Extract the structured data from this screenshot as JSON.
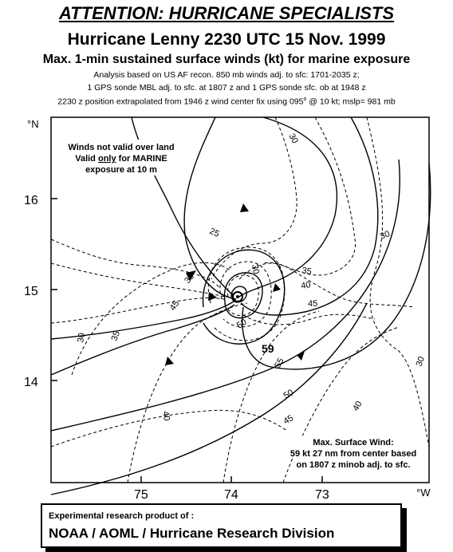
{
  "header": {
    "attention": "ATTENTION: HURRICANE SPECIALISTS",
    "title": "Hurricane Lenny 2230 UTC 15 Nov. 1999",
    "subtitle": "Max. 1-min sustained surface winds (kt) for marine exposure",
    "analysis_line1": "Analysis based on US AF recon. 850 mb winds adj. to sfc: 1701-2035 z;",
    "analysis_line2": "1 GPS sonde MBL adj. to sfc. at 1807 z and 1 GPS sonde sfc. ob at 1948 z",
    "analysis_line3_pre": "2230 z position extrapolated from 1946 z wind center fix using  095",
    "analysis_line3_deg": "o",
    "analysis_line3_post": " @ 10 kt; mslp= 981 mb"
  },
  "map": {
    "lat_unit": "°N",
    "lon_unit": "°W",
    "lat_ticks": [
      "16",
      "15",
      "14"
    ],
    "lon_ticks": [
      "75",
      "74",
      "73"
    ],
    "note_land_1": "Winds not valid over land",
    "note_land_2_pre": "Valid ",
    "note_land_2_em": "only",
    "note_land_2_post": " for MARINE",
    "note_land_3": "exposure at 10 m",
    "max_wind_label": "59",
    "max_wind_note_1": "Max. Surface Wind:",
    "max_wind_note_2": "59 kt 27 nm from center based",
    "max_wind_note_3": "on 1807 z minob adj. to sfc.",
    "center_symbol": "☼",
    "isotach_labels": [
      "30",
      "25",
      "30",
      "35",
      "40",
      "45",
      "45",
      "35",
      "30",
      "50",
      "55",
      "50",
      "45",
      "40",
      "40",
      "35",
      "30",
      "30"
    ]
  },
  "footer": {
    "line1": "Experimental research product of :",
    "line2": "NOAA / AOML / Hurricane Research Division"
  }
}
